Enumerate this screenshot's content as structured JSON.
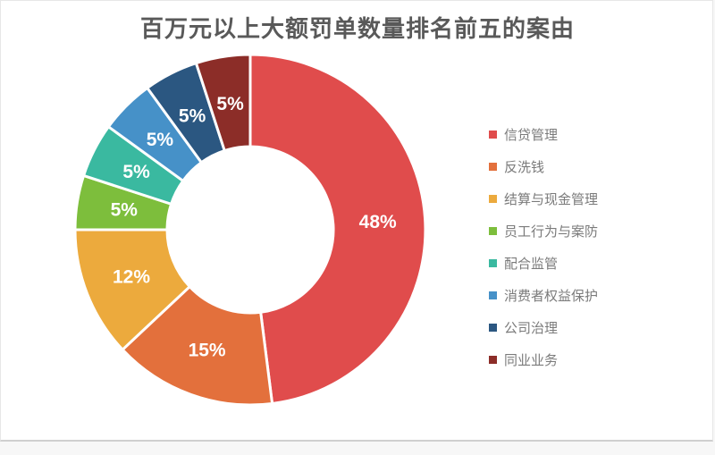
{
  "page": {
    "title": "百万元以上大额罚单数量排名前五的案由"
  },
  "chart_data": {
    "type": "pie",
    "subtype": "donut",
    "title": "百万元以上大额罚单数量排名前五的案由",
    "unit": "%",
    "legend_position": "right",
    "start_angle_deg": 0,
    "direction": "clockwise",
    "series": [
      {
        "name": "信贷管理",
        "value": 48,
        "label": "48%",
        "color": "#e04c4c"
      },
      {
        "name": "反洗钱",
        "value": 15,
        "label": "15%",
        "color": "#e3703c"
      },
      {
        "name": "结算与现金管理",
        "value": 12,
        "label": "12%",
        "color": "#ecaa3d"
      },
      {
        "name": "员工行为与案防",
        "value": 5,
        "label": "5%",
        "color": "#7dbe3c"
      },
      {
        "name": "配合监管",
        "value": 5,
        "label": "5%",
        "color": "#3ab9a0"
      },
      {
        "name": "消费者权益保护",
        "value": 5,
        "label": "5%",
        "color": "#4691c8"
      },
      {
        "name": "公司治理",
        "value": 5,
        "label": "5%",
        "color": "#2b5781"
      },
      {
        "name": "同业业务",
        "value": 5,
        "label": "5%",
        "color": "#8c2d28"
      }
    ]
  }
}
